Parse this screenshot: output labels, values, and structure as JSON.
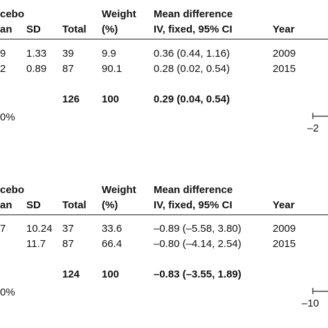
{
  "panels": [
    {
      "group_label": "cebo",
      "headers": {
        "mean": "an",
        "sd": "SD",
        "total": "Total",
        "weight_line1": "Weight",
        "weight_line2": "(%)",
        "md_line1": "Mean difference",
        "md_line2": "IV, fixed, 95% CI",
        "year": "Year"
      },
      "rows": [
        {
          "mean": "9",
          "sd": "1.33",
          "total": "39",
          "weight": "9.9",
          "md": "0.36 (0.44, 1.16)",
          "year": "2009"
        },
        {
          "mean": "2",
          "sd": "0.89",
          "total": "87",
          "weight": "90.1",
          "md": "0.28 (0.02, 0.54)",
          "year": "2015"
        }
      ],
      "total_row": {
        "total": "126",
        "weight": "100",
        "md": "0.29 (0.04, 0.54)"
      },
      "heterogeneity": "0%",
      "axis_tick": "–2"
    },
    {
      "group_label": "cebo",
      "headers": {
        "mean": "an",
        "sd": "SD",
        "total": "Total",
        "weight_line1": "Weight",
        "weight_line2": "(%)",
        "md_line1": "Mean difference",
        "md_line2": "IV, fixed, 95% CI",
        "year": "Year"
      },
      "rows": [
        {
          "mean": "7",
          "sd": "10.24",
          "total": "37",
          "weight": "33.6",
          "md": "–0.89 (–5.58, 3.80)",
          "year": "2009"
        },
        {
          "mean": "",
          "sd": "11.7",
          "total": "87",
          "weight": "66.4",
          "md": "–0.80 (–4.14, 2.54)",
          "year": "2015"
        }
      ],
      "total_row": {
        "total": "124",
        "weight": "100",
        "md": "–0.83 (–3.55, 1.89)"
      },
      "heterogeneity": "0%",
      "axis_tick": "–10"
    }
  ],
  "chart_data": [
    {
      "type": "table",
      "columns": [
        "Mean",
        "SD",
        "Total",
        "Weight (%)",
        "Mean difference IV, fixed, 95% CI",
        "Year"
      ],
      "rows": [
        {
          "sd": 1.33,
          "total": 39,
          "weight": 9.9,
          "md": 0.36,
          "ci": [
            0.44,
            1.16
          ],
          "year": 2009
        },
        {
          "sd": 0.89,
          "total": 87,
          "weight": 90.1,
          "md": 0.28,
          "ci": [
            0.02,
            0.54
          ],
          "year": 2015
        }
      ],
      "pooled": {
        "total": 126,
        "weight": 100,
        "md": 0.29,
        "ci": [
          0.04,
          0.54
        ]
      },
      "axis_ticks": [
        -2
      ]
    },
    {
      "type": "table",
      "columns": [
        "Mean",
        "SD",
        "Total",
        "Weight (%)",
        "Mean difference IV, fixed, 95% CI",
        "Year"
      ],
      "rows": [
        {
          "sd": 10.24,
          "total": 37,
          "weight": 33.6,
          "md": -0.89,
          "ci": [
            -5.58,
            3.8
          ],
          "year": 2009
        },
        {
          "sd": 11.7,
          "total": 87,
          "weight": 66.4,
          "md": -0.8,
          "ci": [
            -4.14,
            2.54
          ],
          "year": 2015
        }
      ],
      "pooled": {
        "total": 124,
        "weight": 100,
        "md": -0.83,
        "ci": [
          -3.55,
          1.89
        ]
      },
      "axis_ticks": [
        -10
      ]
    }
  ]
}
